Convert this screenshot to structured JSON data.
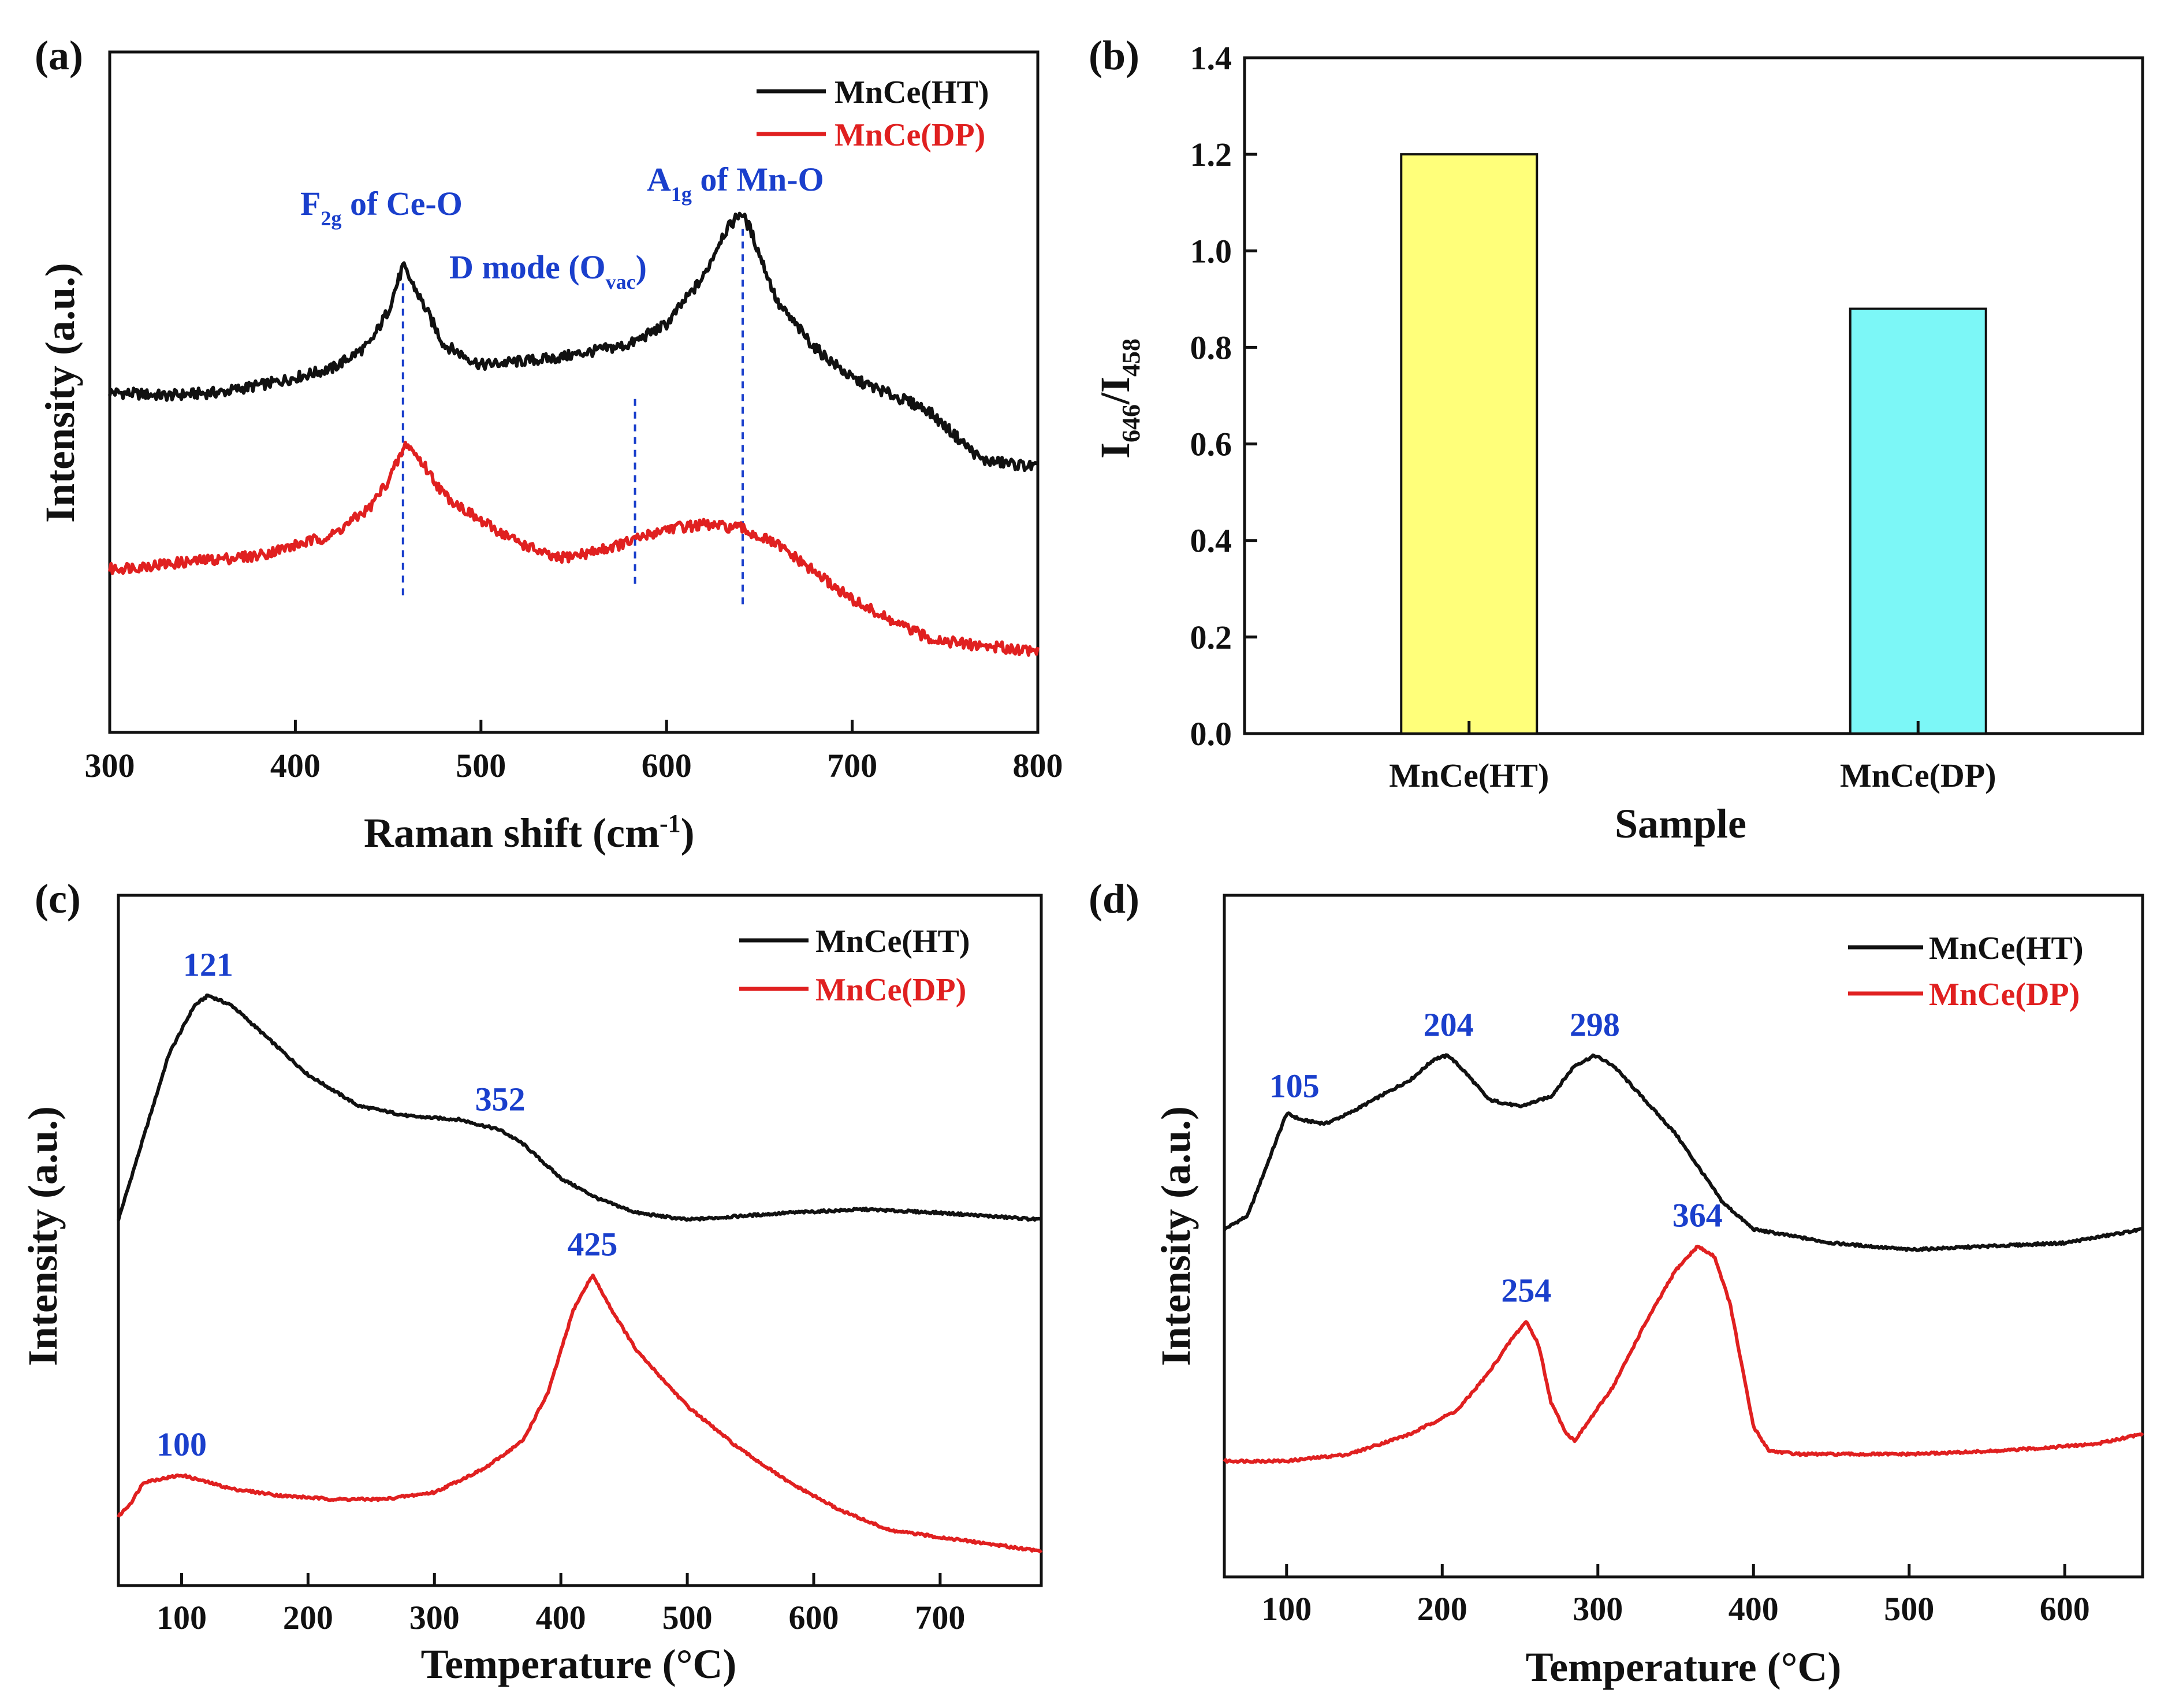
{
  "colors": {
    "black_series": "#111111",
    "red_series": "#e02020",
    "annotation": "#1a3fcc",
    "bar_ht": "#ffff7a",
    "bar_dp": "#7cf7f7"
  },
  "chart_data": [
    {
      "panel": "(a)",
      "type": "line",
      "xlabel_main": "Raman shift (cm",
      "xlabel_sup": "-1",
      "xlabel_close": ")",
      "ylabel": "Intensity (a.u.)",
      "xlim": [
        300,
        800
      ],
      "ylim": [
        0,
        100
      ],
      "xticks": [
        300,
        400,
        500,
        600,
        700,
        800
      ],
      "legend": [
        "MnCe(HT)",
        "MnCe(DP)"
      ],
      "series": [
        {
          "name": "MnCe(HT)",
          "color": "black",
          "x": [
            300,
            330,
            360,
            390,
            420,
            440,
            450,
            458,
            465,
            480,
            500,
            520,
            540,
            560,
            580,
            600,
            620,
            630,
            640,
            645,
            660,
            680,
            700,
            740,
            770,
            800
          ],
          "y": [
            50,
            49.5,
            50,
            51.5,
            53.5,
            57,
            62,
            68.5,
            65,
            57,
            54,
            54.5,
            55,
            56,
            57,
            60,
            67,
            73,
            76.5,
            74,
            63,
            56.5,
            52,
            47.5,
            40,
            39
          ]
        },
        {
          "name": "MnCe(DP)",
          "color": "red",
          "x": [
            300,
            340,
            380,
            420,
            440,
            450,
            460,
            470,
            480,
            500,
            520,
            540,
            560,
            580,
            600,
            620,
            640,
            660,
            680,
            700,
            720,
            740,
            760,
            780,
            800
          ],
          "y": [
            24,
            25,
            26,
            29,
            33,
            37,
            42.5,
            39,
            35,
            31,
            28,
            25.5,
            26.5,
            28,
            30,
            30.5,
            30,
            27.5,
            23.5,
            19.5,
            16.5,
            14,
            13,
            12.5,
            12
          ]
        }
      ],
      "vlines": [
        458,
        583,
        641
      ],
      "annotations": {
        "f2g_main": "F",
        "f2g_sub": "2g",
        "f2g_rest": " of Ce-O",
        "a1g_main": "A",
        "a1g_sub": "1g",
        "a1g_rest": " of Mn-O",
        "dmode_main": "D mode (O",
        "dmode_sub": "vac",
        "dmode_close": ")"
      }
    },
    {
      "panel": "(b)",
      "type": "bar",
      "categories": [
        "MnCe(HT)",
        "MnCe(DP)"
      ],
      "values": [
        1.2,
        0.88
      ],
      "xlabel": "Sample",
      "ylabel_main": "I",
      "ylabel_sub1": "646",
      "ylabel_slash": "/I",
      "ylabel_sub2": "458",
      "ylim": [
        0.0,
        1.4
      ],
      "yticks": [
        "0.0",
        "0.2",
        "0.4",
        "0.6",
        "0.8",
        "1.0",
        "1.2",
        "1.4"
      ]
    },
    {
      "panel": "(c)",
      "type": "line",
      "xlabel": "Temperature (°C)",
      "ylabel": "Intensity (a.u.)",
      "xlim": [
        50,
        780
      ],
      "ylim": [
        0,
        100
      ],
      "xticks": [
        100,
        200,
        300,
        400,
        500,
        600,
        700
      ],
      "legend": [
        "MnCe(HT)",
        "MnCe(DP)"
      ],
      "series": [
        {
          "name": "MnCe(HT)",
          "color": "black",
          "x": [
            50,
            70,
            90,
            110,
            121,
            140,
            170,
            200,
            240,
            280,
            320,
            352,
            370,
            400,
            430,
            460,
            500,
            540,
            580,
            640,
            700,
            780
          ],
          "y": [
            53,
            65,
            77,
            84,
            85.5,
            84,
            79,
            74,
            69.5,
            68,
            67.5,
            66,
            64,
            59,
            56,
            54,
            53,
            53.5,
            54,
            54.5,
            54,
            53
          ]
        },
        {
          "name": "MnCe(DP)",
          "color": "red",
          "x": [
            50,
            60,
            70,
            100,
            140,
            180,
            220,
            260,
            300,
            340,
            370,
            390,
            410,
            425,
            440,
            460,
            500,
            540,
            580,
            620,
            660,
            700,
            740,
            780
          ],
          "y": [
            10,
            12,
            15,
            16,
            14,
            13,
            12.5,
            12.5,
            13.5,
            17,
            21,
            28,
            40,
            45,
            40,
            34,
            26,
            20,
            15,
            11,
            8,
            7,
            6,
            5
          ]
        }
      ],
      "peak_labels": [
        {
          "text": "121",
          "x": 121,
          "series": 0
        },
        {
          "text": "352",
          "x": 352,
          "series": 0
        },
        {
          "text": "100",
          "x": 100,
          "series": 1
        },
        {
          "text": "425",
          "x": 425,
          "series": 1
        }
      ]
    },
    {
      "panel": "(d)",
      "type": "line",
      "xlabel": "Temperature (°C)",
      "ylabel": "Intensity (a.u.)",
      "xlim": [
        60,
        650
      ],
      "ylim": [
        0,
        100
      ],
      "xticks": [
        100,
        200,
        300,
        400,
        500,
        600
      ],
      "legend": [
        "MnCe(HT)",
        "MnCe(DP)"
      ],
      "series": [
        {
          "name": "MnCe(HT)",
          "color": "black",
          "x": [
            60,
            75,
            90,
            100,
            110,
            125,
            140,
            160,
            180,
            195,
            204,
            215,
            230,
            250,
            270,
            285,
            298,
            310,
            330,
            350,
            365,
            380,
            400,
            450,
            500,
            550,
            600,
            650
          ],
          "y": [
            51,
            53,
            62,
            68,
            67,
            66.5,
            68,
            70.5,
            73,
            76,
            76.5,
            74,
            70,
            69,
            70.5,
            75,
            76.5,
            75,
            70,
            65,
            60,
            55,
            51,
            49,
            48,
            48.5,
            49,
            51
          ]
        },
        {
          "name": "MnCe(DP)",
          "color": "red",
          "x": [
            60,
            100,
            140,
            180,
            210,
            230,
            245,
            254,
            262,
            270,
            280,
            285,
            290,
            310,
            330,
            350,
            364,
            375,
            385,
            395,
            400,
            410,
            430,
            500,
            560,
            620,
            650
          ],
          "y": [
            17,
            17,
            18,
            21,
            24.5,
            30,
            35,
            37.5,
            34,
            25.5,
            21,
            20,
            21.5,
            28,
            37,
            45,
            48.5,
            47,
            40,
            28,
            22,
            18.5,
            18,
            18,
            18.5,
            19.5,
            21
          ]
        }
      ],
      "peak_labels": [
        {
          "text": "105",
          "x": 105,
          "series": 0
        },
        {
          "text": "204",
          "x": 204,
          "series": 0
        },
        {
          "text": "298",
          "x": 298,
          "series": 0
        },
        {
          "text": "254",
          "x": 254,
          "series": 1
        },
        {
          "text": "364",
          "x": 364,
          "series": 1
        }
      ]
    }
  ]
}
